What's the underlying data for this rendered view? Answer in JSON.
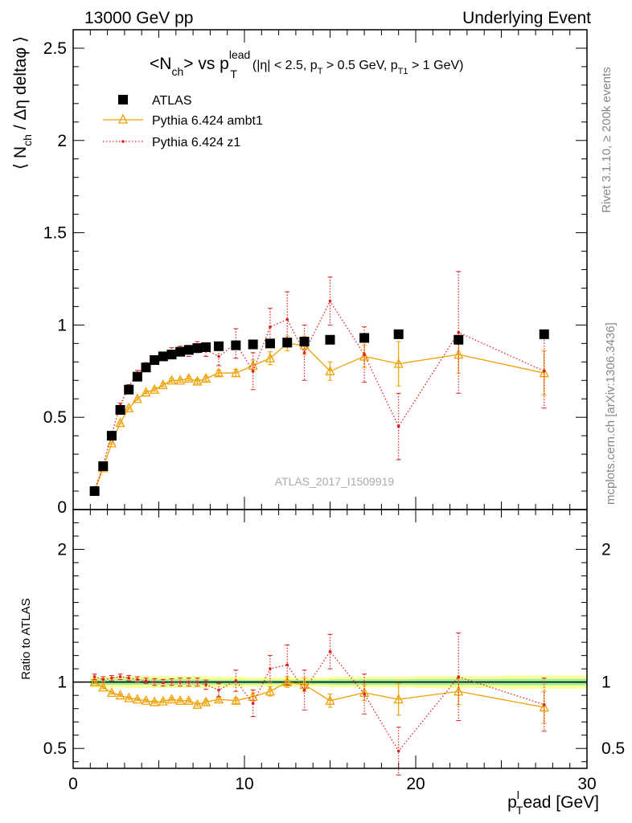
{
  "header": {
    "left": "13000 GeV pp",
    "right": "Underlying Event"
  },
  "side_labels": {
    "rivet": "Rivet 3.1.10, ≥ 200k events",
    "mcplots": "mcplots.cern.ch [arXiv:1306.3436]"
  },
  "watermark": "ATLAS_2017_I1509919",
  "chart_data": [
    {
      "type": "scatter",
      "panel": "main",
      "title_parts": {
        "main": "<N",
        "main_sub": "ch",
        "main_rest": "> vs p",
        "sup": "lead",
        "sub": "T",
        "cond_a": "(|η| < 2.5, p",
        "cond_a_sub": "T",
        "cond_b": " > 0.5 GeV, p",
        "cond_b_sub": "T1",
        "cond_c": " > 1 GeV)"
      },
      "ylabel_parts": {
        "a": "⟨ N",
        "sub": "ch",
        "b": " / Δη deltaφ ⟩"
      },
      "ylim": [
        0,
        2.6
      ],
      "xlim": [
        0,
        30
      ],
      "yticks": [
        0.5,
        1,
        1.5,
        2,
        2.5
      ],
      "ytick_labels": [
        "0.5",
        "1",
        "1.5",
        "2",
        "2.5"
      ],
      "ytick_zero_label": "0",
      "legend": [
        "ATLAS",
        "Pythia 6.424 ambt1",
        "Pythia 6.424 z1"
      ],
      "series": [
        {
          "name": "ATLAS",
          "color": "#000000",
          "x": [
            1.25,
            1.75,
            2.25,
            2.75,
            3.25,
            3.75,
            4.25,
            4.75,
            5.25,
            5.75,
            6.25,
            6.75,
            7.25,
            7.75,
            8.5,
            9.5,
            10.5,
            11.5,
            12.5,
            13.5,
            15,
            17,
            19,
            22.5,
            27.5
          ],
          "y": [
            0.1,
            0.235,
            0.4,
            0.54,
            0.65,
            0.72,
            0.77,
            0.81,
            0.83,
            0.84,
            0.855,
            0.865,
            0.875,
            0.88,
            0.885,
            0.89,
            0.895,
            0.9,
            0.905,
            0.91,
            0.92,
            0.93,
            0.95,
            0.92,
            0.95
          ]
        },
        {
          "name": "Pythia 6.424 ambt1",
          "color": "#f0a000",
          "x": [
            1.25,
            1.75,
            2.25,
            2.75,
            3.25,
            3.75,
            4.25,
            4.75,
            5.25,
            5.75,
            6.25,
            6.75,
            7.25,
            7.75,
            8.5,
            9.5,
            10.5,
            11.5,
            12.5,
            13.5,
            15,
            17,
            19,
            22.5,
            27.5
          ],
          "y": [
            0.1,
            0.225,
            0.36,
            0.47,
            0.55,
            0.6,
            0.635,
            0.65,
            0.675,
            0.7,
            0.7,
            0.71,
            0.695,
            0.71,
            0.74,
            0.74,
            0.78,
            0.82,
            0.9,
            0.89,
            0.75,
            0.83,
            0.79,
            0.84,
            0.74
          ],
          "yerr": [
            0.005,
            0.005,
            0.005,
            0.006,
            0.006,
            0.007,
            0.008,
            0.009,
            0.01,
            0.01,
            0.01,
            0.012,
            0.012,
            0.013,
            0.015,
            0.02,
            0.03,
            0.035,
            0.04,
            0.05,
            0.05,
            0.06,
            0.12,
            0.1,
            0.12
          ]
        },
        {
          "name": "Pythia 6.424 z1",
          "color": "#e02020",
          "x": [
            1.25,
            1.75,
            2.25,
            2.75,
            3.25,
            3.75,
            4.25,
            4.75,
            5.25,
            5.75,
            6.25,
            6.75,
            7.25,
            7.75,
            8.5,
            9.5,
            10.5,
            11.5,
            12.5,
            13.5,
            15,
            17,
            19,
            22.5,
            27.5
          ],
          "y": [
            0.105,
            0.24,
            0.41,
            0.565,
            0.665,
            0.74,
            0.78,
            0.815,
            0.83,
            0.855,
            0.86,
            0.86,
            0.88,
            0.865,
            0.83,
            0.9,
            0.75,
            0.99,
            1.03,
            0.85,
            1.13,
            0.84,
            0.45,
            0.96,
            0.75
          ],
          "yerr": [
            0.01,
            0.01,
            0.01,
            0.012,
            0.012,
            0.014,
            0.016,
            0.018,
            0.02,
            0.022,
            0.025,
            0.03,
            0.03,
            0.035,
            0.05,
            0.08,
            0.1,
            0.1,
            0.15,
            0.15,
            0.13,
            0.15,
            0.18,
            0.33,
            0.2
          ]
        }
      ]
    },
    {
      "type": "scatter",
      "panel": "ratio",
      "ylabel": "Ratio to ATLAS",
      "xlabel_parts": {
        "a": "p",
        "sup": "l",
        "sub": "T",
        "b": "ead [GeV]"
      },
      "ylim": [
        0.35,
        2.3
      ],
      "xlim": [
        0,
        30
      ],
      "yticks": [
        0.5,
        1,
        2
      ],
      "ytick_labels": [
        "0.5",
        "1",
        "2"
      ],
      "xticks": [
        0,
        10,
        20,
        30
      ],
      "xtick_labels": [
        "0",
        "10",
        "20",
        "30"
      ],
      "band_x": [
        1,
        3,
        8,
        10,
        15,
        20,
        25,
        30
      ],
      "band_outer": [
        0.04,
        0.045,
        0.04,
        0.035,
        0.04,
        0.045,
        0.05,
        0.055
      ],
      "band_inner": [
        0.02,
        0.02,
        0.018,
        0.017,
        0.02,
        0.022,
        0.024,
        0.026
      ],
      "series": [
        {
          "name": "Pythia 6.424 ambt1",
          "color": "#f0a000",
          "x": [
            1.25,
            1.75,
            2.25,
            2.75,
            3.25,
            3.75,
            4.25,
            4.75,
            5.25,
            5.75,
            6.25,
            6.75,
            7.25,
            7.75,
            8.5,
            9.5,
            10.5,
            11.5,
            12.5,
            13.5,
            15,
            17,
            19,
            22.5,
            27.5
          ],
          "y": [
            1.0,
            0.96,
            0.92,
            0.9,
            0.88,
            0.87,
            0.86,
            0.85,
            0.855,
            0.87,
            0.86,
            0.86,
            0.83,
            0.85,
            0.87,
            0.86,
            0.89,
            0.93,
            1.0,
            0.98,
            0.86,
            0.92,
            0.87,
            0.93,
            0.81
          ],
          "yerr": [
            0.01,
            0.01,
            0.01,
            0.01,
            0.01,
            0.01,
            0.01,
            0.01,
            0.012,
            0.012,
            0.012,
            0.013,
            0.013,
            0.015,
            0.015,
            0.02,
            0.03,
            0.035,
            0.04,
            0.05,
            0.05,
            0.06,
            0.12,
            0.1,
            0.12
          ]
        },
        {
          "name": "Pythia 6.424 z1",
          "color": "#e02020",
          "x": [
            1.25,
            1.75,
            2.25,
            2.75,
            3.25,
            3.75,
            4.25,
            4.75,
            5.25,
            5.75,
            6.25,
            6.75,
            7.25,
            7.75,
            8.5,
            9.5,
            10.5,
            11.5,
            12.5,
            13.5,
            15,
            17,
            19,
            22.5,
            27.5
          ],
          "y": [
            1.04,
            1.02,
            1.03,
            1.04,
            1.03,
            1.02,
            1.01,
            1.0,
            0.995,
            1.0,
            1.0,
            1.0,
            1.0,
            0.98,
            0.94,
            1.01,
            0.84,
            1.1,
            1.13,
            0.94,
            1.23,
            0.91,
            0.48,
            1.04,
            0.83
          ],
          "yerr": [
            0.02,
            0.02,
            0.02,
            0.02,
            0.02,
            0.02,
            0.02,
            0.025,
            0.025,
            0.025,
            0.03,
            0.03,
            0.03,
            0.035,
            0.05,
            0.08,
            0.1,
            0.1,
            0.15,
            0.15,
            0.13,
            0.15,
            0.18,
            0.33,
            0.2
          ]
        }
      ]
    }
  ]
}
